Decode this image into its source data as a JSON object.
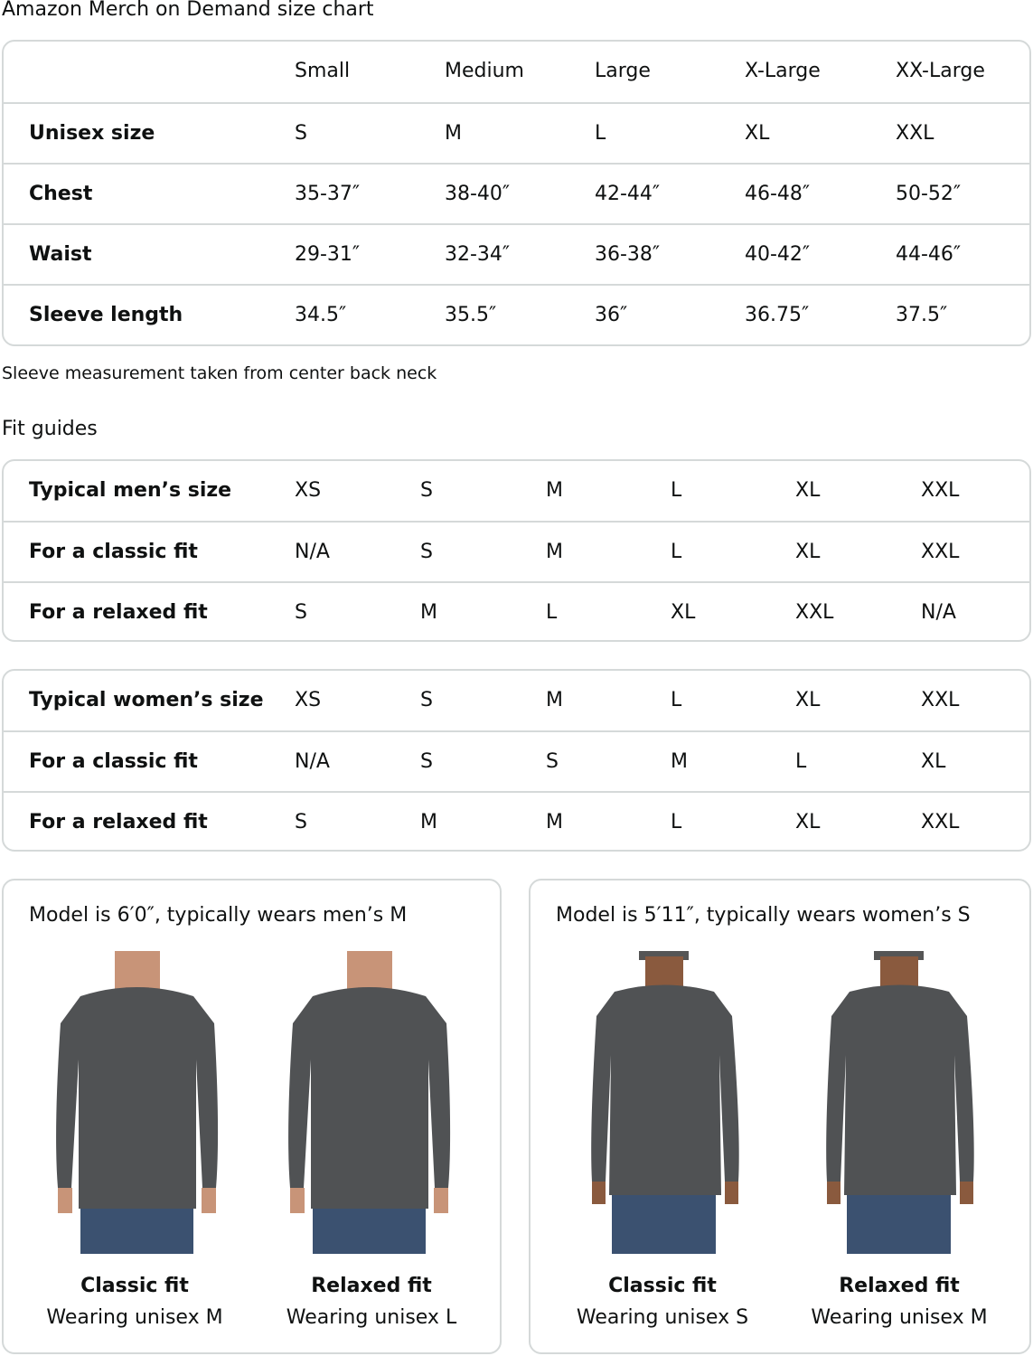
{
  "title": "Amazon Merch on Demand size chart",
  "size_chart": {
    "headers": [
      "",
      "Small",
      "Medium",
      "Large",
      "X-Large",
      "XX-Large"
    ],
    "rows": [
      {
        "label": "Unisex size",
        "values": [
          "S",
          "M",
          "L",
          "XL",
          "XXL"
        ]
      },
      {
        "label": "Chest",
        "values": [
          "35-37″",
          "38-40″",
          "42-44″",
          "46-48″",
          "50-52″"
        ]
      },
      {
        "label": "Waist",
        "values": [
          "29-31″",
          "32-34″",
          "36-38″",
          "40-42″",
          "44-46″"
        ]
      },
      {
        "label": "Sleeve length",
        "values": [
          "34.5″",
          "35.5″",
          "36″",
          "36.75″",
          "37.5″"
        ]
      }
    ]
  },
  "note": "Sleeve measurement taken from center back neck",
  "fit_guides_title": "Fit guides",
  "mens_fit": [
    {
      "label": "Typical men’s size",
      "values": [
        "XS",
        "S",
        "M",
        "L",
        "XL",
        "XXL"
      ]
    },
    {
      "label": "For a classic fit",
      "values": [
        "N/A",
        "S",
        "M",
        "L",
        "XL",
        "XXL"
      ]
    },
    {
      "label": "For a relaxed fit",
      "values": [
        "S",
        "M",
        "L",
        "XL",
        "XXL",
        "N/A"
      ]
    }
  ],
  "womens_fit": [
    {
      "label": "Typical women’s size",
      "values": [
        "XS",
        "S",
        "M",
        "L",
        "XL",
        "XXL"
      ]
    },
    {
      "label": "For a classic fit",
      "values": [
        "N/A",
        "S",
        "S",
        "M",
        "L",
        "XL"
      ]
    },
    {
      "label": "For a relaxed fit",
      "values": [
        "S",
        "M",
        "M",
        "L",
        "XL",
        "XXL"
      ]
    }
  ],
  "models": [
    {
      "heading": "Model is 6′0″, typically wears men’s M",
      "photos": [
        {
          "fit": "Classic fit",
          "wearing": "Wearing unisex M"
        },
        {
          "fit": "Relaxed fit",
          "wearing": "Wearing unisex L"
        }
      ]
    },
    {
      "heading": "Model is 5′11″, typically wears women’s S",
      "photos": [
        {
          "fit": "Classic fit",
          "wearing": "Wearing unisex S"
        },
        {
          "fit": "Relaxed fit",
          "wearing": "Wearing unisex M"
        }
      ]
    }
  ],
  "colors": {
    "border": "#d5d9d9",
    "shirt": "#505254",
    "jeans": "#3b5170",
    "skin": "#c89478"
  }
}
